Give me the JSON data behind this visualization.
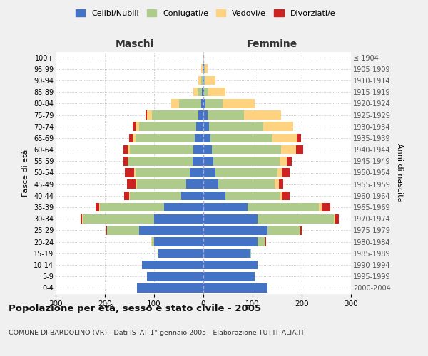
{
  "age_groups": [
    "0-4",
    "5-9",
    "10-14",
    "15-19",
    "20-24",
    "25-29",
    "30-34",
    "35-39",
    "40-44",
    "45-49",
    "50-54",
    "55-59",
    "60-64",
    "65-69",
    "70-74",
    "75-79",
    "80-84",
    "85-89",
    "90-94",
    "95-99",
    "100+"
  ],
  "birth_years": [
    "2000-2004",
    "1995-1999",
    "1990-1994",
    "1985-1989",
    "1980-1984",
    "1975-1979",
    "1970-1974",
    "1965-1969",
    "1960-1964",
    "1955-1959",
    "1950-1954",
    "1945-1949",
    "1940-1944",
    "1935-1939",
    "1930-1934",
    "1925-1929",
    "1920-1924",
    "1915-1919",
    "1910-1914",
    "1905-1909",
    "≤ 1904"
  ],
  "maschi": {
    "celibi": [
      135,
      115,
      125,
      92,
      100,
      130,
      100,
      80,
      45,
      35,
      28,
      22,
      20,
      18,
      15,
      10,
      5,
      3,
      1,
      1,
      0
    ],
    "coniugati": [
      0,
      0,
      0,
      1,
      5,
      65,
      145,
      130,
      105,
      100,
      110,
      130,
      130,
      120,
      115,
      95,
      45,
      8,
      4,
      1,
      0
    ],
    "vedovi": [
      0,
      0,
      0,
      0,
      1,
      1,
      1,
      1,
      1,
      2,
      2,
      2,
      3,
      5,
      8,
      10,
      15,
      10,
      5,
      2,
      0
    ],
    "divorziati": [
      0,
      0,
      0,
      0,
      0,
      1,
      3,
      8,
      10,
      18,
      20,
      8,
      10,
      8,
      5,
      3,
      0,
      0,
      0,
      0,
      0
    ]
  },
  "femmine": {
    "nubili": [
      130,
      105,
      110,
      95,
      110,
      130,
      110,
      90,
      45,
      30,
      25,
      20,
      18,
      15,
      12,
      8,
      4,
      2,
      1,
      1,
      0
    ],
    "coniugate": [
      0,
      0,
      0,
      2,
      15,
      65,
      155,
      145,
      110,
      115,
      125,
      135,
      140,
      125,
      110,
      75,
      35,
      8,
      4,
      2,
      0
    ],
    "vedove": [
      0,
      0,
      0,
      0,
      1,
      2,
      3,
      5,
      5,
      8,
      10,
      15,
      30,
      50,
      60,
      75,
      65,
      35,
      20,
      5,
      1
    ],
    "divorziate": [
      0,
      0,
      0,
      0,
      1,
      3,
      8,
      18,
      15,
      10,
      15,
      10,
      15,
      8,
      0,
      0,
      0,
      0,
      0,
      0,
      0
    ]
  },
  "colors": {
    "celibi": "#4472C4",
    "coniugati": "#AECB8C",
    "vedovi": "#FFD280",
    "divorziati": "#CC2222"
  },
  "xlim": 300,
  "title": "Popolazione per età, sesso e stato civile - 2005",
  "subtitle": "COMUNE DI BARDOLINO (VR) - Dati ISTAT 1° gennaio 2005 - Elaborazione TUTTITALIA.IT",
  "ylabel_left": "Fasce di età",
  "ylabel_right": "Anni di nascita",
  "xlabel_left": "Maschi",
  "xlabel_right": "Femmine",
  "bg_color": "#f0f0f0",
  "plot_bg": "#ffffff",
  "legend_labels": [
    "Celibi/Nubili",
    "Coniugati/e",
    "Vedovi/e",
    "Divorziati/e"
  ]
}
